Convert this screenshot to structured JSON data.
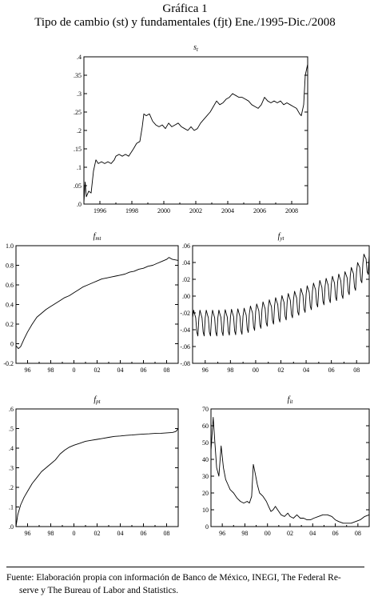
{
  "figure": {
    "title_line1": "Gráfica 1",
    "title_line2": "Tipo de cambio (st) y fundamentales (fjt) Ene./1995-Dic./2008",
    "source_line1": "Fuente: Elaboración propia con información de Banco de México, INEGI, The Federal Re-",
    "source_line2": "serve y The Bureau of Labor and Statistics."
  },
  "chart_data": [
    {
      "id": "st",
      "type": "line",
      "title": "st",
      "title_main": "s",
      "title_sub": "t",
      "xlim": [
        1995.0,
        2009.0
      ],
      "ylim": [
        0.0,
        0.4
      ],
      "xticks": [
        1996,
        1998,
        2000,
        2002,
        2004,
        2006,
        2008
      ],
      "xtick_labels": [
        "1996",
        "1998",
        "2000",
        "2002",
        "2004",
        "2006",
        "2008"
      ],
      "yticks": [
        0.0,
        0.05,
        0.1,
        0.15,
        0.2,
        0.25,
        0.3,
        0.35,
        0.4
      ],
      "ytick_labels": [
        ".0",
        ".05",
        ".1",
        ".15",
        ".2",
        ".25",
        ".3",
        ".35",
        ".4"
      ],
      "line_color": "#000000",
      "points": [
        [
          1995.0,
          0.005
        ],
        [
          1995.08,
          0.06
        ],
        [
          1995.15,
          0.02
        ],
        [
          1995.3,
          0.035
        ],
        [
          1995.45,
          0.03
        ],
        [
          1995.6,
          0.09
        ],
        [
          1995.75,
          0.12
        ],
        [
          1995.9,
          0.11
        ],
        [
          1996.1,
          0.115
        ],
        [
          1996.3,
          0.11
        ],
        [
          1996.5,
          0.115
        ],
        [
          1996.7,
          0.11
        ],
        [
          1996.9,
          0.12
        ],
        [
          1997.0,
          0.13
        ],
        [
          1997.2,
          0.135
        ],
        [
          1997.4,
          0.13
        ],
        [
          1997.6,
          0.135
        ],
        [
          1997.8,
          0.13
        ],
        [
          1997.95,
          0.14
        ],
        [
          1998.1,
          0.15
        ],
        [
          1998.3,
          0.165
        ],
        [
          1998.5,
          0.17
        ],
        [
          1998.65,
          0.21
        ],
        [
          1998.75,
          0.245
        ],
        [
          1998.9,
          0.24
        ],
        [
          1999.1,
          0.245
        ],
        [
          1999.3,
          0.225
        ],
        [
          1999.5,
          0.215
        ],
        [
          1999.7,
          0.21
        ],
        [
          1999.9,
          0.215
        ],
        [
          2000.1,
          0.205
        ],
        [
          2000.3,
          0.22
        ],
        [
          2000.5,
          0.21
        ],
        [
          2000.7,
          0.215
        ],
        [
          2000.9,
          0.22
        ],
        [
          2001.1,
          0.21
        ],
        [
          2001.3,
          0.205
        ],
        [
          2001.5,
          0.2
        ],
        [
          2001.7,
          0.21
        ],
        [
          2001.9,
          0.2
        ],
        [
          2002.1,
          0.205
        ],
        [
          2002.3,
          0.22
        ],
        [
          2002.5,
          0.23
        ],
        [
          2002.7,
          0.24
        ],
        [
          2002.9,
          0.25
        ],
        [
          2003.1,
          0.265
        ],
        [
          2003.3,
          0.28
        ],
        [
          2003.5,
          0.27
        ],
        [
          2003.7,
          0.275
        ],
        [
          2003.9,
          0.285
        ],
        [
          2004.1,
          0.29
        ],
        [
          2004.3,
          0.3
        ],
        [
          2004.5,
          0.295
        ],
        [
          2004.7,
          0.29
        ],
        [
          2004.9,
          0.29
        ],
        [
          2005.1,
          0.285
        ],
        [
          2005.3,
          0.28
        ],
        [
          2005.5,
          0.27
        ],
        [
          2005.7,
          0.265
        ],
        [
          2005.9,
          0.26
        ],
        [
          2006.1,
          0.27
        ],
        [
          2006.3,
          0.29
        ],
        [
          2006.5,
          0.28
        ],
        [
          2006.7,
          0.275
        ],
        [
          2006.9,
          0.28
        ],
        [
          2007.1,
          0.275
        ],
        [
          2007.3,
          0.28
        ],
        [
          2007.5,
          0.27
        ],
        [
          2007.7,
          0.275
        ],
        [
          2007.9,
          0.27
        ],
        [
          2008.1,
          0.265
        ],
        [
          2008.3,
          0.26
        ],
        [
          2008.5,
          0.245
        ],
        [
          2008.6,
          0.24
        ],
        [
          2008.75,
          0.27
        ],
        [
          2008.85,
          0.35
        ],
        [
          2009.0,
          0.38
        ]
      ]
    },
    {
      "id": "fmt",
      "type": "line",
      "title": "fmt",
      "title_main": "f",
      "title_sub": "mt",
      "xlim": [
        1995.0,
        2009.0
      ],
      "ylim": [
        -0.2,
        1.0
      ],
      "xticks": [
        1996,
        1998,
        2000,
        2002,
        2004,
        2006,
        2008
      ],
      "xtick_labels": [
        "96",
        "98",
        "0",
        "02",
        "04",
        "06",
        "08"
      ],
      "yticks": [
        -0.2,
        0.0,
        0.2,
        0.4,
        0.6,
        0.8,
        1.0
      ],
      "ytick_labels": [
        "-0.2",
        "0",
        "0.2",
        "0.4",
        "0.6",
        "0.8",
        "1.0"
      ],
      "line_color": "#000000",
      "points": [
        [
          1995.0,
          -0.02
        ],
        [
          1995.2,
          -0.05
        ],
        [
          1995.4,
          -0.03
        ],
        [
          1995.7,
          0.05
        ],
        [
          1996.0,
          0.12
        ],
        [
          1996.4,
          0.2
        ],
        [
          1996.8,
          0.27
        ],
        [
          1997.2,
          0.31
        ],
        [
          1997.6,
          0.35
        ],
        [
          1998.0,
          0.38
        ],
        [
          1998.4,
          0.41
        ],
        [
          1998.8,
          0.44
        ],
        [
          1999.2,
          0.47
        ],
        [
          1999.6,
          0.49
        ],
        [
          2000.0,
          0.52
        ],
        [
          2000.4,
          0.55
        ],
        [
          2000.8,
          0.58
        ],
        [
          2001.2,
          0.6
        ],
        [
          2001.6,
          0.62
        ],
        [
          2002.0,
          0.64
        ],
        [
          2002.4,
          0.66
        ],
        [
          2002.8,
          0.67
        ],
        [
          2003.2,
          0.68
        ],
        [
          2003.6,
          0.69
        ],
        [
          2004.0,
          0.7
        ],
        [
          2004.4,
          0.71
        ],
        [
          2004.8,
          0.73
        ],
        [
          2005.2,
          0.74
        ],
        [
          2005.6,
          0.76
        ],
        [
          2006.0,
          0.77
        ],
        [
          2006.4,
          0.79
        ],
        [
          2006.8,
          0.8
        ],
        [
          2007.2,
          0.82
        ],
        [
          2007.6,
          0.84
        ],
        [
          2008.0,
          0.86
        ],
        [
          2008.2,
          0.88
        ],
        [
          2008.5,
          0.86
        ],
        [
          2009.0,
          0.85
        ]
      ]
    },
    {
      "id": "fyt",
      "type": "line",
      "title": "fyt",
      "title_main": "f",
      "title_sub": "yt",
      "xlim": [
        1995.0,
        2009.0
      ],
      "ylim": [
        -0.08,
        0.06
      ],
      "xticks": [
        1996,
        1998,
        2000,
        2002,
        2004,
        2006,
        2008
      ],
      "xtick_labels": [
        "96",
        "98",
        "00",
        "02",
        "04",
        "06",
        "08"
      ],
      "yticks": [
        -0.08,
        -0.06,
        -0.04,
        -0.02,
        0.0,
        0.02,
        0.04,
        0.06
      ],
      "ytick_labels": [
        "-.08",
        "-.06",
        "-.04",
        "-.02",
        ".00",
        ".02",
        ".04",
        ".06"
      ],
      "line_color": "#000000",
      "trend": [
        [
          1995.0,
          -0.03
        ],
        [
          1997.0,
          -0.03
        ],
        [
          1999.0,
          -0.028
        ],
        [
          2001.0,
          -0.018
        ],
        [
          2003.0,
          -0.008
        ],
        [
          2005.0,
          0.005
        ],
        [
          2007.0,
          0.015
        ],
        [
          2008.0,
          0.025
        ],
        [
          2009.0,
          0.045
        ]
      ],
      "seasonal_amplitude": 0.02
    },
    {
      "id": "fpt",
      "type": "line",
      "title": "fpt",
      "title_main": "f",
      "title_sub": "pt",
      "xlim": [
        1995.0,
        2009.0
      ],
      "ylim": [
        0.0,
        0.6
      ],
      "xticks": [
        1996,
        1998,
        2000,
        2002,
        2004,
        2006,
        2008
      ],
      "xtick_labels": [
        "96",
        "98",
        "0",
        "02",
        "04",
        "06",
        "08"
      ],
      "yticks": [
        0.0,
        0.1,
        0.2,
        0.3,
        0.4,
        0.5,
        0.6
      ],
      "ytick_labels": [
        ".0",
        ".1",
        ".2",
        ".3",
        ".4",
        ".5",
        ".6"
      ],
      "line_color": "#000000",
      "points": [
        [
          1995.0,
          0.0
        ],
        [
          1995.15,
          0.06
        ],
        [
          1995.4,
          0.11
        ],
        [
          1995.7,
          0.15
        ],
        [
          1996.0,
          0.18
        ],
        [
          1996.4,
          0.22
        ],
        [
          1996.8,
          0.25
        ],
        [
          1997.2,
          0.28
        ],
        [
          1997.6,
          0.3
        ],
        [
          1998.0,
          0.32
        ],
        [
          1998.4,
          0.34
        ],
        [
          1998.8,
          0.37
        ],
        [
          1999.2,
          0.39
        ],
        [
          1999.6,
          0.405
        ],
        [
          2000.0,
          0.415
        ],
        [
          2000.5,
          0.425
        ],
        [
          2001.0,
          0.435
        ],
        [
          2001.5,
          0.44
        ],
        [
          2002.0,
          0.445
        ],
        [
          2002.5,
          0.45
        ],
        [
          2003.0,
          0.455
        ],
        [
          2003.5,
          0.46
        ],
        [
          2004.0,
          0.462
        ],
        [
          2004.5,
          0.465
        ],
        [
          2005.0,
          0.467
        ],
        [
          2005.5,
          0.47
        ],
        [
          2006.0,
          0.472
        ],
        [
          2006.5,
          0.473
        ],
        [
          2007.0,
          0.475
        ],
        [
          2007.5,
          0.476
        ],
        [
          2008.0,
          0.478
        ],
        [
          2008.5,
          0.48
        ],
        [
          2008.8,
          0.485
        ],
        [
          2009.0,
          0.5
        ]
      ]
    },
    {
      "id": "fit",
      "type": "line",
      "title": "fit",
      "title_main": "f",
      "title_sub": "it",
      "xlim": [
        1995.0,
        2009.0
      ],
      "ylim": [
        0,
        70
      ],
      "xticks": [
        1996,
        1998,
        2000,
        2002,
        2004,
        2006,
        2008
      ],
      "xtick_labels": [
        "96",
        "98",
        "00",
        "02",
        "04",
        "06",
        "08"
      ],
      "yticks": [
        0,
        10,
        20,
        30,
        40,
        50,
        60,
        70
      ],
      "ytick_labels": [
        "0",
        "10",
        "20",
        "30",
        "40",
        "50",
        "60",
        "70"
      ],
      "line_color": "#000000",
      "points": [
        [
          1995.0,
          45
        ],
        [
          1995.2,
          65
        ],
        [
          1995.35,
          50
        ],
        [
          1995.5,
          35
        ],
        [
          1995.7,
          30
        ],
        [
          1995.9,
          48
        ],
        [
          1996.1,
          35
        ],
        [
          1996.3,
          28
        ],
        [
          1996.5,
          25
        ],
        [
          1996.7,
          22
        ],
        [
          1997.0,
          20
        ],
        [
          1997.3,
          17
        ],
        [
          1997.6,
          15
        ],
        [
          1997.9,
          14
        ],
        [
          1998.2,
          15
        ],
        [
          1998.4,
          14
        ],
        [
          1998.6,
          18
        ],
        [
          1998.75,
          37
        ],
        [
          1998.9,
          32
        ],
        [
          1999.1,
          25
        ],
        [
          1999.3,
          20
        ],
        [
          1999.6,
          18
        ],
        [
          1999.9,
          15
        ],
        [
          2000.1,
          12
        ],
        [
          2000.3,
          9
        ],
        [
          2000.5,
          10
        ],
        [
          2000.7,
          12
        ],
        [
          2000.9,
          10
        ],
        [
          2001.2,
          7
        ],
        [
          2001.5,
          6
        ],
        [
          2001.8,
          8
        ],
        [
          2002.0,
          6
        ],
        [
          2002.3,
          5
        ],
        [
          2002.6,
          7
        ],
        [
          2002.9,
          5
        ],
        [
          2003.2,
          5
        ],
        [
          2003.5,
          4
        ],
        [
          2003.8,
          4
        ],
        [
          2004.1,
          5
        ],
        [
          2004.5,
          6
        ],
        [
          2004.9,
          7
        ],
        [
          2005.3,
          7
        ],
        [
          2005.7,
          6
        ],
        [
          2006.0,
          4
        ],
        [
          2006.3,
          3
        ],
        [
          2006.7,
          2
        ],
        [
          2007.0,
          2
        ],
        [
          2007.4,
          2
        ],
        [
          2007.8,
          3
        ],
        [
          2008.2,
          4
        ],
        [
          2008.6,
          6
        ],
        [
          2009.0,
          7
        ]
      ]
    }
  ]
}
